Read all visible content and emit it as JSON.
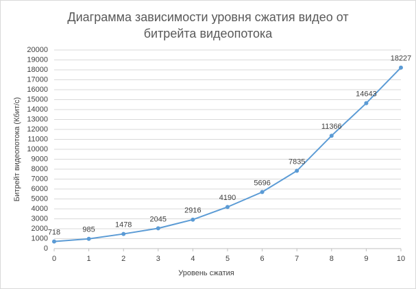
{
  "chart_data": {
    "type": "line",
    "title": "Диаграмма зависимости уровня сжатия видео от битрейта видеопотока",
    "x_label": "Уровень сжатия",
    "y_label": "Битрейт видеопотока (Кбит/с)",
    "x": [
      0,
      1,
      2,
      3,
      4,
      5,
      6,
      7,
      8,
      9,
      10
    ],
    "series": [
      {
        "name": "Битрейт",
        "color": "#5b9bd5",
        "values": [
          718,
          985,
          1478,
          2045,
          2916,
          4190,
          5696,
          7835,
          11366,
          14643,
          18227
        ]
      }
    ],
    "xlim": [
      0,
      10
    ],
    "xticks": [
      0,
      1,
      2,
      3,
      4,
      5,
      6,
      7,
      8,
      9,
      10
    ],
    "ylim": [
      0,
      20000
    ],
    "yticks": [
      0,
      1000,
      2000,
      3000,
      4000,
      5000,
      6000,
      7000,
      8000,
      9000,
      10000,
      11000,
      12000,
      13000,
      14000,
      15000,
      16000,
      17000,
      18000,
      19000,
      20000
    ],
    "grid": true,
    "data_labels": true
  }
}
